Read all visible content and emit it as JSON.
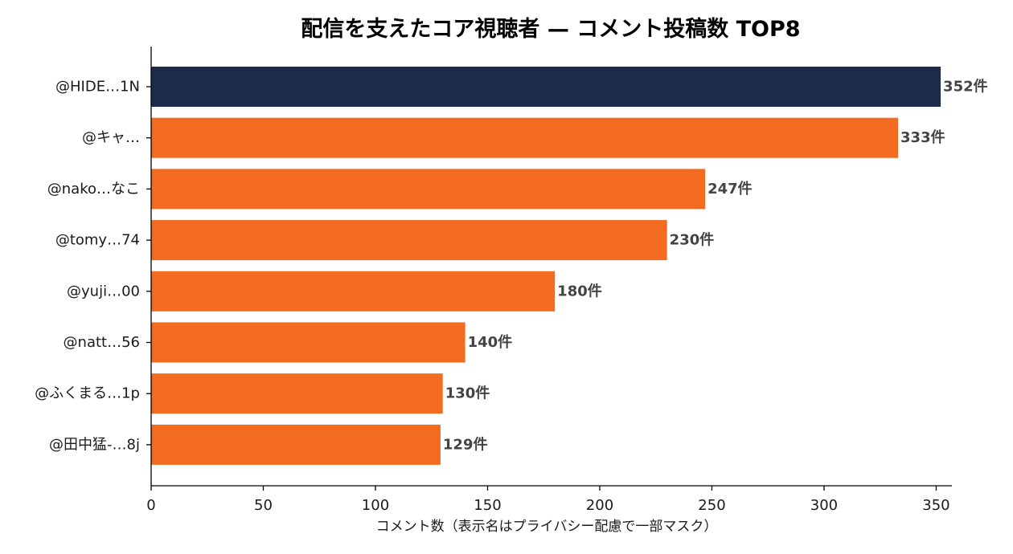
{
  "chart_data": {
    "type": "bar",
    "orientation": "horizontal",
    "title": "配信を支えたコア視聴者 — コメント投稿数 TOP8",
    "xlabel": "コメント数（表示名はプライバシー配慮で一部マスク）",
    "ylabel": "",
    "xlim": [
      0,
      357
    ],
    "xticks": [
      0,
      50,
      100,
      150,
      200,
      250,
      300,
      350
    ],
    "categories": [
      "@HIDE…1N",
      "@キャ…",
      "@nako…なこ",
      "@tomy…74",
      "@yuji…00",
      "@natt…56",
      "@ふくまる…1p",
      "@田中猛-…8j"
    ],
    "values": [
      352,
      333,
      247,
      230,
      180,
      140,
      130,
      129
    ],
    "data_labels": [
      "352件",
      "333件",
      "247件",
      "230件",
      "180件",
      "140件",
      "130件",
      "129件"
    ],
    "highlight_index": 0,
    "colors": {
      "highlight": "#1e2a4a",
      "default": "#f26b21",
      "label": "#444444"
    },
    "grid": false,
    "legend": "none"
  }
}
